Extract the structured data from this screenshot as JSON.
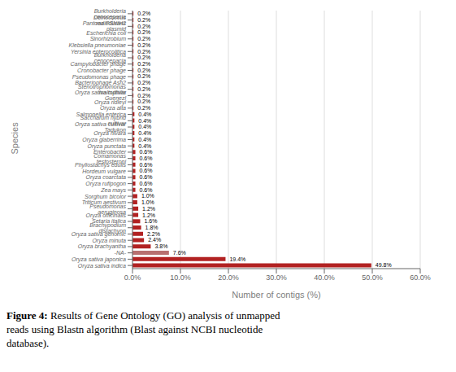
{
  "chart_data": {
    "type": "bar",
    "orientation": "horizontal",
    "data_labels": true,
    "grid": true,
    "xlabel": "Number of contigs (%)",
    "ylabel": "Species",
    "annotations": [
      "Figure 4:",
      " Results of Gene Ontology (GO) analysis of unmapped\nreads using Blastn algorithm (Blast against NCBI nucleotide\ndatabase)."
    ],
    "categories": [
      "Burkholderia cenocepacia",
      "Deinococcus radiodurans",
      "Pantoea PSNIH2 plasmid",
      "Escherichia coli",
      "Sinorhizobium",
      "Klebsiella pneumoniae",
      "Yersinia enterocolitica",
      "Burkholderia cenocepacia",
      "Campylobacter phage",
      "Cronobacter phage",
      "Pseudomonas phage",
      "Bacteriophage Ash2",
      "Stenotrophomonas maltophilia",
      "Oryza sativa cultivar Guenezl",
      "Oryza ridleyi",
      "Oryza alta",
      "Salmonella enterica",
      "Saccharum hybrid cultivar",
      "Oryza sativa cultivar Tadukon",
      "Oryza nivara",
      "Oryza glaberrima",
      "Oryza punctata",
      "Enterobacter",
      "Comamonas testosteroni",
      "Phyllostachys edulis",
      "Hordeum vulgare",
      "Oryza coarctata",
      "Oryza rufipogon",
      "Zea mays",
      "Sorghum bicolor",
      "Triticum aestivum",
      "Pseudomonas aeruginosa",
      "Oryza officinalis",
      "Setaria italica",
      "Brachypodium distachyon",
      "Oryza sativa genomic",
      "Oryza minuta",
      "Oryza brachyantha",
      "-NA-",
      "Oryza sativa japonica",
      "Oryza sativa indica"
    ],
    "values": [
      0.2,
      0.2,
      0.2,
      0.2,
      0.2,
      0.2,
      0.2,
      0.2,
      0.2,
      0.2,
      0.2,
      0.2,
      0.2,
      0.2,
      0.2,
      0.2,
      0.4,
      0.4,
      0.4,
      0.4,
      0.4,
      0.4,
      0.6,
      0.6,
      0.6,
      0.6,
      0.6,
      0.6,
      0.6,
      1.0,
      1.0,
      1.2,
      1.2,
      1.6,
      1.8,
      2.2,
      2.4,
      3.8,
      7.6,
      19.4,
      49.8
    ],
    "value_labels": [
      "0.2%",
      "0.2%",
      "0.2%",
      "0.2%",
      "0.2%",
      "0.2%",
      "0.2%",
      "0.2%",
      "0.2%",
      "0.2%",
      "0.2%",
      "0.2%",
      "0.2%",
      "0.2%",
      "0.2%",
      "0.2%",
      "0.4%",
      "0.4%",
      "0.4%",
      "0.4%",
      "0.4%",
      "0.4%",
      "0.6%",
      "0.6%",
      "0.6%",
      "0.6%",
      "0.6%",
      "0.6%",
      "0.6%",
      "1.0%",
      "1.0%",
      "1.2%",
      "1.2%",
      "1.6%",
      "1.8%",
      "2.2%",
      "2.4%",
      "3.8%",
      "7.6%",
      "19.4%",
      "49.8%"
    ],
    "colors": [
      "#b22222",
      "#b22222",
      "#b22222",
      "#b22222",
      "#b22222",
      "#b22222",
      "#b22222",
      "#b22222",
      "#b22222",
      "#b22222",
      "#b22222",
      "#b22222",
      "#b22222",
      "#b22222",
      "#b22222",
      "#b22222",
      "#b22222",
      "#b22222",
      "#b22222",
      "#b22222",
      "#b22222",
      "#b22222",
      "#b22222",
      "#b22222",
      "#b22222",
      "#b22222",
      "#b22222",
      "#b22222",
      "#b22222",
      "#b22222",
      "#b22222",
      "#b22222",
      "#b22222",
      "#b22222",
      "#b22222",
      "#b22222",
      "#b22222",
      "#b22222",
      "#b87070",
      "#b22222",
      "#b22222"
    ],
    "xlim": [
      0,
      60
    ],
    "xticks": [
      {
        "value": 0,
        "label": "0.0%"
      },
      {
        "value": 10,
        "label": "10.0%"
      },
      {
        "value": 20,
        "label": "20.0%"
      },
      {
        "value": 30,
        "label": "30.0%"
      },
      {
        "value": 40,
        "label": "40.0%"
      },
      {
        "value": 50,
        "label": "50.0%"
      },
      {
        "value": 60,
        "label": "60.0%"
      }
    ]
  }
}
